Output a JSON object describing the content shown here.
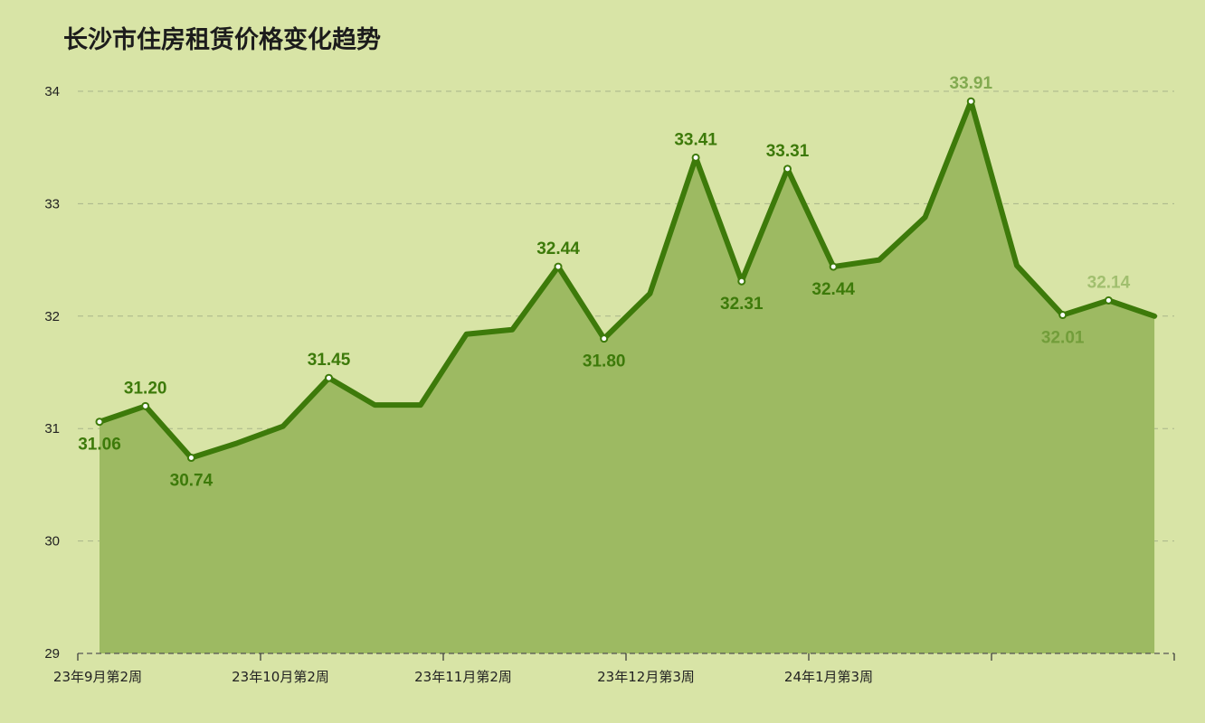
{
  "chart_data": {
    "type": "area",
    "title": "长沙市住房租赁价格变化趋势",
    "xlabel": "",
    "ylabel": "",
    "ylim": [
      29,
      34
    ],
    "yticks": [
      "29",
      "30",
      "31",
      "32",
      "33",
      "34"
    ],
    "grid": true,
    "legend": "none",
    "x_tick_labels": [
      "23年9月第2周",
      "23年10月第2周",
      "23年11月第2周",
      "23年12月第3周",
      "24年1月第3周"
    ],
    "series": [
      {
        "values": [
          31.06,
          31.2,
          30.74,
          30.87,
          31.02,
          31.45,
          31.21,
          31.21,
          31.84,
          31.88,
          32.44,
          31.8,
          32.2,
          33.41,
          32.31,
          33.31,
          32.44,
          32.5,
          32.88,
          33.91,
          32.45,
          32.01,
          32.14,
          32.0
        ]
      }
    ],
    "data_labels": [
      {
        "index": 0,
        "text": "31.06"
      },
      {
        "index": 1,
        "text": "31.20"
      },
      {
        "index": 2,
        "text": "30.74"
      },
      {
        "index": 5,
        "text": "31.45"
      },
      {
        "index": 10,
        "text": "32.44"
      },
      {
        "index": 11,
        "text": "31.80"
      },
      {
        "index": 13,
        "text": "33.41"
      },
      {
        "index": 14,
        "text": "32.31"
      },
      {
        "index": 15,
        "text": "33.31"
      },
      {
        "index": 16,
        "text": "32.44"
      },
      {
        "index": 19,
        "text": "33.91"
      },
      {
        "index": 21,
        "text": "32.01"
      },
      {
        "index": 22,
        "text": "32.14"
      }
    ],
    "colors": {
      "background": "#d8e4a6",
      "line": "#3d7a0a",
      "fill": "#9dba62",
      "label": "#3d7a0a",
      "grid": "#a8b48a"
    }
  }
}
